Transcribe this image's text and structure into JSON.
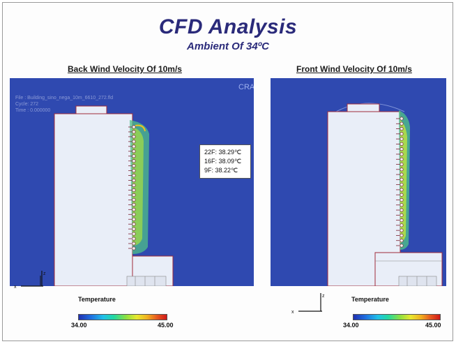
{
  "header": {
    "title": "CFD Analysis",
    "subtitle": "Ambient Of 34ºC"
  },
  "colors": {
    "field_blue": "#2f49b0",
    "building": "#e9eef8",
    "title_navy": "#2a2a7a",
    "outline": "#a02a3a"
  },
  "panels": [
    {
      "title": "Back Wind Velocity Of 10m/s",
      "info_lines": [
        "File : Building_sino_nega_10m_6610_272.fld",
        "Cycle: 272",
        "Time : 0.000000"
      ],
      "logo_text": "CRA",
      "callout": [
        "22F: 38.29℃",
        "16F: 38.09℃",
        "9F: 38.22℃"
      ],
      "legend": {
        "title": "Temperature",
        "min": "34.00",
        "max": "45.00"
      }
    },
    {
      "title": "Front Wind Velocity Of 10m/s",
      "legend": {
        "title": "Temperature",
        "min": "34.00",
        "max": "45.00"
      }
    }
  ]
}
